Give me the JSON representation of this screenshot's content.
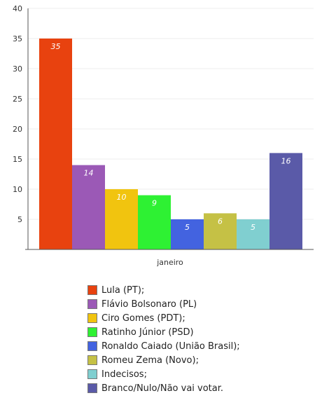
{
  "chart_data": {
    "type": "bar",
    "categories": [
      "janeiro"
    ],
    "series": [
      {
        "name": "Lula (PT);",
        "values": [
          35
        ],
        "color": "#e8420f"
      },
      {
        "name": "Flávio Bolsonaro (PL)",
        "values": [
          14
        ],
        "color": "#9b59b6"
      },
      {
        "name": "Ciro Gomes (PDT);",
        "values": [
          10
        ],
        "color": "#f1c40f"
      },
      {
        "name": "Ratinho Júnior (PSD)",
        "values": [
          9
        ],
        "color": "#2ef133"
      },
      {
        "name": "Ronaldo Caiado (União Brasil);",
        "values": [
          5
        ],
        "color": "#4363e0"
      },
      {
        "name": "Romeu Zema (Novo);",
        "values": [
          6
        ],
        "color": "#c5c145"
      },
      {
        "name": "Indecisos;",
        "values": [
          5
        ],
        "color": "#80cfd0"
      },
      {
        "name": "Branco/Nulo/Não vai votar.",
        "values": [
          16
        ],
        "color": "#5a5aa8"
      }
    ],
    "yticks": [
      "5",
      "10",
      "15",
      "20",
      "25",
      "30",
      "35",
      "40"
    ],
    "ylim": [
      0,
      40
    ],
    "grid": true,
    "legend_position": "bottom"
  }
}
